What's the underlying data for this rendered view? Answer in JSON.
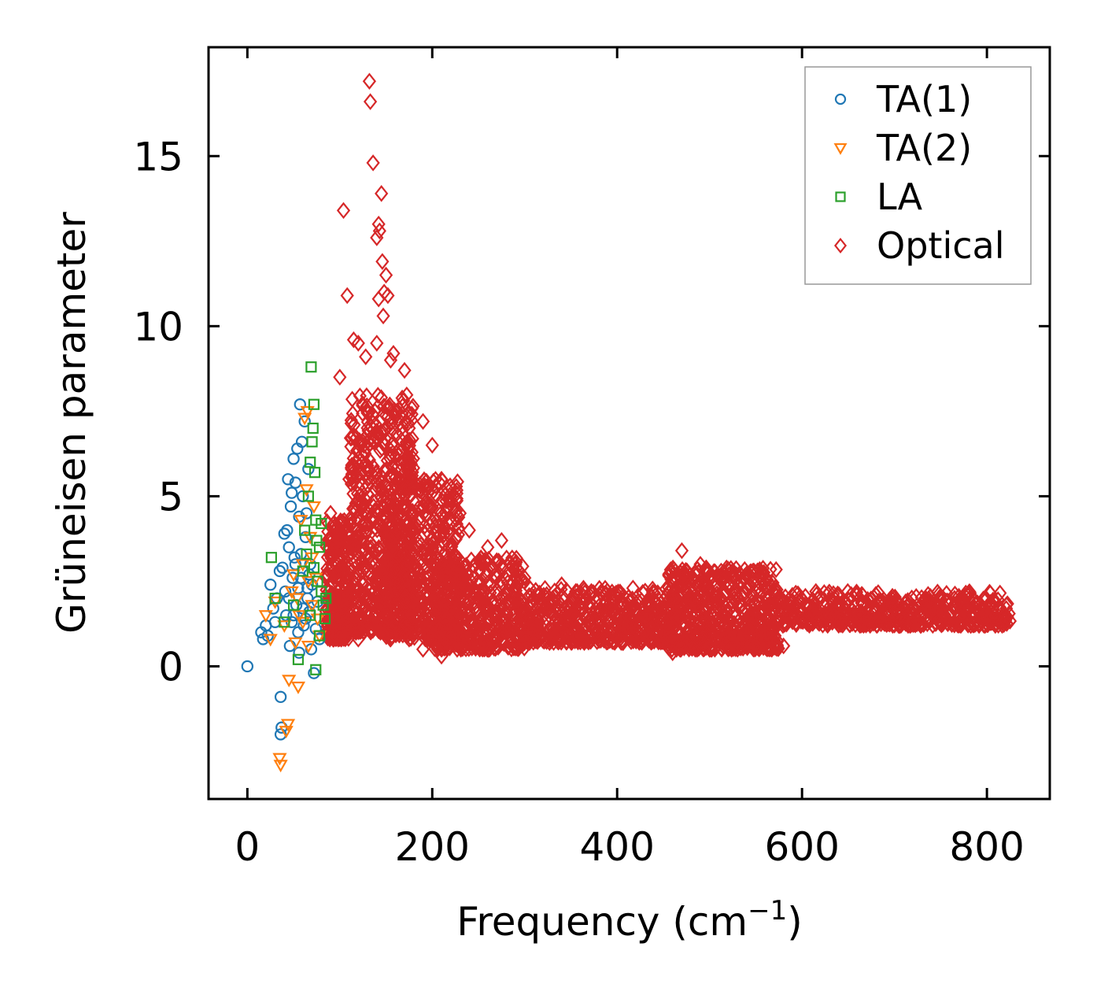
{
  "chart_data": {
    "type": "scatter",
    "title": "",
    "xlabel": "Frequency (cm",
    "xlabel_sup": "−1",
    "xlabel_close": ")",
    "ylabel": "Grüneisen parameter",
    "xlim": [
      -42,
      868
    ],
    "ylim": [
      -3.9,
      18.2
    ],
    "xticks": [
      0,
      200,
      400,
      600,
      800
    ],
    "yticks": [
      0,
      5,
      10,
      15
    ],
    "xtick_labels": [
      "0",
      "200",
      "400",
      "600",
      "800"
    ],
    "ytick_labels": [
      "0",
      "5",
      "10",
      "15"
    ],
    "grid": false,
    "legend_position": "top-right",
    "series": [
      {
        "name": "TA(1)",
        "marker": "circle",
        "color": "#1f77b4",
        "points": [
          [
            0,
            0
          ],
          [
            15,
            1.0
          ],
          [
            17,
            0.8
          ],
          [
            20,
            1.2
          ],
          [
            22,
            0.9
          ],
          [
            25,
            2.4
          ],
          [
            28,
            1.7
          ],
          [
            30,
            1.3
          ],
          [
            32,
            2.0
          ],
          [
            35,
            2.8
          ],
          [
            36,
            -0.9
          ],
          [
            37,
            -1.8
          ],
          [
            36,
            -2.0
          ],
          [
            38,
            2.9
          ],
          [
            40,
            3.9
          ],
          [
            41,
            2.2
          ],
          [
            42,
            1.5
          ],
          [
            43,
            4.0
          ],
          [
            44,
            5.5
          ],
          [
            45,
            3.5
          ],
          [
            46,
            0.6
          ],
          [
            47,
            4.7
          ],
          [
            48,
            5.1
          ],
          [
            49,
            2.6
          ],
          [
            50,
            6.1
          ],
          [
            51,
            3.2
          ],
          [
            52,
            5.4
          ],
          [
            53,
            1.8
          ],
          [
            54,
            6.4
          ],
          [
            55,
            2.3
          ],
          [
            56,
            4.4
          ],
          [
            57,
            7.7
          ],
          [
            58,
            3.3
          ],
          [
            59,
            6.6
          ],
          [
            60,
            5.0
          ],
          [
            61,
            1.2
          ],
          [
            62,
            7.2
          ],
          [
            63,
            3.8
          ],
          [
            64,
            4.5
          ],
          [
            65,
            2.0
          ],
          [
            66,
            5.8
          ],
          [
            67,
            1.6
          ],
          [
            68,
            3.0
          ],
          [
            69,
            0.5
          ],
          [
            70,
            2.4
          ],
          [
            72,
            -0.2
          ],
          [
            74,
            1.1
          ],
          [
            76,
            1.9
          ],
          [
            78,
            0.8
          ],
          [
            45,
            2.0
          ],
          [
            50,
            1.5
          ],
          [
            55,
            1.0
          ],
          [
            60,
            1.7
          ],
          [
            65,
            2.3
          ],
          [
            58,
            2.6
          ],
          [
            52,
            3.0
          ],
          [
            63,
            1.4
          ],
          [
            67,
            2.7
          ],
          [
            48,
            1.3
          ],
          [
            56,
            0.4
          ]
        ]
      },
      {
        "name": "TA(2)",
        "marker": "triangle-down",
        "color": "#ff7f0e",
        "points": [
          [
            20,
            1.5
          ],
          [
            25,
            0.8
          ],
          [
            30,
            1.9
          ],
          [
            35,
            -2.7
          ],
          [
            36,
            -2.9
          ],
          [
            40,
            1.2
          ],
          [
            42,
            -1.9
          ],
          [
            44,
            -1.7
          ],
          [
            45,
            -0.4
          ],
          [
            48,
            2.2
          ],
          [
            50,
            2.7
          ],
          [
            52,
            0.7
          ],
          [
            55,
            -0.6
          ],
          [
            56,
            1.5
          ],
          [
            58,
            4.3
          ],
          [
            60,
            3.0
          ],
          [
            62,
            7.3
          ],
          [
            64,
            5.2
          ],
          [
            65,
            7.5
          ],
          [
            66,
            2.5
          ],
          [
            68,
            3.8
          ],
          [
            70,
            1.8
          ],
          [
            72,
            4.7
          ],
          [
            74,
            2.6
          ],
          [
            76,
            1.4
          ],
          [
            78,
            0.9
          ],
          [
            54,
            2.0
          ],
          [
            60,
            1.3
          ],
          [
            66,
            0.6
          ],
          [
            70,
            3.2
          ]
        ]
      },
      {
        "name": "LA",
        "marker": "square",
        "color": "#2ca02c",
        "points": [
          [
            26,
            3.2
          ],
          [
            30,
            2.0
          ],
          [
            40,
            1.3
          ],
          [
            50,
            1.8
          ],
          [
            55,
            0.2
          ],
          [
            60,
            2.8
          ],
          [
            62,
            4.0
          ],
          [
            64,
            3.3
          ],
          [
            66,
            5.0
          ],
          [
            68,
            6.0
          ],
          [
            69,
            8.8
          ],
          [
            70,
            6.6
          ],
          [
            71,
            7.0
          ],
          [
            72,
            7.7
          ],
          [
            73,
            5.7
          ],
          [
            74,
            4.3
          ],
          [
            75,
            3.7
          ],
          [
            76,
            2.5
          ],
          [
            78,
            3.5
          ],
          [
            80,
            2.2
          ],
          [
            82,
            1.8
          ],
          [
            84,
            1.4
          ],
          [
            85,
            2.0
          ],
          [
            74,
            -0.1
          ],
          [
            68,
            1.5
          ],
          [
            72,
            2.9
          ],
          [
            78,
            0.9
          ],
          [
            80,
            4.2
          ]
        ]
      },
      {
        "name": "Optical",
        "marker": "diamond",
        "color": "#d62728",
        "points": [
          [
            132,
            17.2
          ],
          [
            133,
            16.6
          ],
          [
            136,
            14.8
          ],
          [
            145,
            13.9
          ],
          [
            104,
            13.4
          ],
          [
            142,
            13.0
          ],
          [
            143,
            12.8
          ],
          [
            140,
            12.6
          ],
          [
            146,
            11.9
          ],
          [
            150,
            11.5
          ],
          [
            148,
            11.0
          ],
          [
            142,
            10.8
          ],
          [
            152,
            10.9
          ],
          [
            108,
            10.9
          ],
          [
            147,
            10.3
          ],
          [
            115,
            9.6
          ],
          [
            120,
            9.5
          ],
          [
            140,
            9.5
          ],
          [
            158,
            9.2
          ],
          [
            155,
            9.0
          ],
          [
            128,
            9.1
          ],
          [
            170,
            8.7
          ],
          [
            100,
            8.5
          ],
          [
            138,
            7.5
          ],
          [
            190,
            7.2
          ],
          [
            200,
            6.5
          ],
          [
            210,
            5.5
          ],
          [
            175,
            7.0
          ],
          [
            230,
            4.5
          ],
          [
            240,
            4.0
          ],
          [
            260,
            3.5
          ],
          [
            275,
            3.7
          ],
          [
            290,
            3.0
          ],
          [
            300,
            2.6
          ],
          [
            340,
            2.4
          ],
          [
            380,
            2.0
          ],
          [
            470,
            3.4
          ],
          [
            490,
            3.0
          ],
          [
            525,
            2.8
          ],
          [
            560,
            2.3
          ],
          [
            570,
            1.8
          ],
          [
            580,
            0.6
          ],
          [
            615,
            2.2
          ],
          [
            640,
            2.1
          ],
          [
            700,
            1.7
          ],
          [
            760,
            1.5
          ],
          [
            800,
            1.45
          ],
          [
            820,
            1.35
          ],
          [
            460,
            0.4
          ],
          [
            500,
            0.5
          ],
          [
            540,
            0.7
          ],
          [
            420,
            0.9
          ],
          [
            360,
            0.8
          ],
          [
            300,
            0.7
          ],
          [
            250,
            0.6
          ],
          [
            210,
            0.3
          ],
          [
            190,
            0.5
          ],
          [
            175,
            0.8
          ],
          [
            120,
            0.8
          ],
          [
            100,
            1.3
          ],
          [
            95,
            2.0
          ],
          [
            90,
            4.5
          ],
          [
            110,
            5.5
          ],
          [
            125,
            6.0
          ],
          [
            135,
            4.3
          ],
          [
            145,
            2.5
          ],
          [
            160,
            2.8
          ],
          [
            170,
            5.0
          ],
          [
            200,
            3.0
          ],
          [
            230,
            2.2
          ],
          [
            260,
            1.8
          ],
          [
            310,
            1.2
          ],
          [
            350,
            1.5
          ],
          [
            400,
            1.2
          ],
          [
            440,
            1.0
          ],
          [
            480,
            2.0
          ],
          [
            520,
            1.8
          ],
          [
            555,
            1.2
          ],
          [
            660,
            1.6
          ],
          [
            720,
            1.3
          ],
          [
            780,
            1.25
          ],
          [
            825,
            1.33
          ]
        ],
        "bands": [
          {
            "x": [
              85,
              110
            ],
            "y": [
              0.8,
              4.3
            ],
            "count": 260
          },
          {
            "x": [
              110,
              180
            ],
            "y": [
              1.0,
              8.0
            ],
            "count": 700
          },
          {
            "x": [
              150,
              230
            ],
            "y": [
              0.8,
              5.5
            ],
            "count": 500
          },
          {
            "x": [
              200,
              300
            ],
            "y": [
              0.5,
              3.2
            ],
            "count": 500
          },
          {
            "x": [
              300,
              460
            ],
            "y": [
              0.7,
              2.3
            ],
            "count": 550
          },
          {
            "x": [
              455,
              575
            ],
            "y": [
              0.5,
              2.9
            ],
            "count": 650
          },
          {
            "x": [
              575,
              825
            ],
            "y": [
              1.2,
              2.2
            ],
            "count": 550
          }
        ]
      }
    ]
  }
}
